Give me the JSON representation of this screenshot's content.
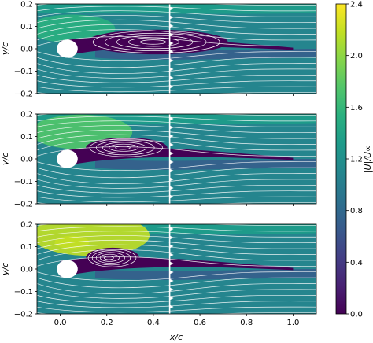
{
  "chart_data": {
    "type": "heatmap",
    "panels": [
      {
        "name": "",
        "bubble": {
          "x_start": 0.11,
          "x_end": 0.72,
          "half_height": 0.055,
          "center_y": 0.03
        },
        "probe_x": 0.47
      },
      {
        "name": "",
        "bubble": {
          "x_start": 0.11,
          "x_end": 0.46,
          "half_height": 0.045,
          "center_y": 0.05
        },
        "probe_x": 0.47
      },
      {
        "name": "",
        "bubble": {
          "x_start": 0.11,
          "x_end": 0.34,
          "half_height": 0.045,
          "center_y": 0.05
        },
        "probe_x": 0.47
      }
    ],
    "xlim": [
      -0.1,
      1.1
    ],
    "ylim": [
      -0.2,
      0.2
    ],
    "xticks": [
      "0.0",
      "0.2",
      "0.4",
      "0.6",
      "0.8",
      "1.0"
    ],
    "yticks": [
      "0.2",
      "0.1",
      "0.0",
      "−0.1",
      "−0.2"
    ],
    "xlabel": "x/c",
    "ylabel": "y/c",
    "colorbar": {
      "label": "|U|/U∞",
      "range": [
        0.0,
        2.4
      ],
      "ticks": [
        "2.4",
        "2.0",
        "1.6",
        "1.2",
        "0.8",
        "0.4",
        "0.0"
      ],
      "colormap": [
        "#440154",
        "#482173",
        "#433e85",
        "#38598c",
        "#2d708e",
        "#25858e",
        "#1e9b8a",
        "#2ab07f",
        "#51c56a",
        "#85d54a",
        "#c2df23",
        "#fde725"
      ]
    }
  }
}
